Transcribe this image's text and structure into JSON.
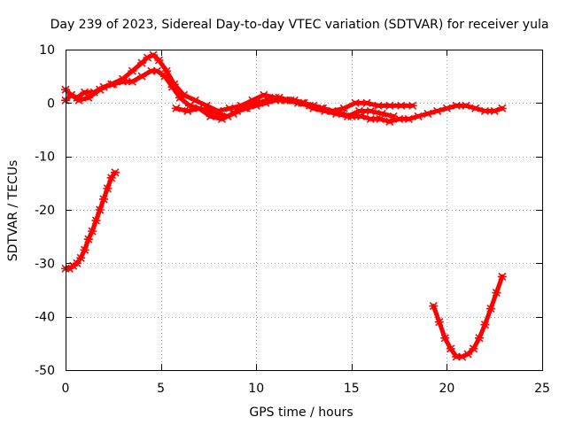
{
  "chart_data": {
    "type": "scatter",
    "title": "Day 239 of 2023, Sidereal Day-to-day VTEC variation (SDTVAR) for receiver yula",
    "xlabel": "GPS time / hours",
    "ylabel": "SDTVAR / TECUs",
    "xlim": [
      0,
      25
    ],
    "ylim": [
      -50,
      10
    ],
    "xticks": [
      0,
      5,
      10,
      15,
      20,
      25
    ],
    "yticks": [
      10,
      0,
      -10,
      -20,
      -30,
      -40,
      -50
    ],
    "grid": true,
    "marker": "cross",
    "color": "#ff0000",
    "series": [
      {
        "name": "cluster-a",
        "x": [
          0.0,
          0.3,
          0.6,
          1.0,
          1.5,
          2.0,
          2.5,
          3.0,
          3.5,
          4.0,
          4.5,
          4.8,
          5.2,
          5.6,
          6.0,
          6.5,
          7.0,
          7.5,
          8.0,
          8.5,
          9.0,
          9.5,
          10.0,
          10.5,
          11.0,
          11.5,
          12.0,
          12.5,
          13.0,
          13.5,
          14.0,
          14.5,
          15.0,
          15.5,
          16.0,
          16.5,
          17.0,
          17.5,
          18.0,
          18.5,
          19.0,
          19.5,
          20.0,
          20.5,
          21.0,
          21.5,
          22.0,
          22.5,
          22.9
        ],
        "y": [
          0.5,
          1.5,
          1.0,
          2.0,
          2.0,
          3.0,
          3.5,
          4.0,
          4.0,
          5.0,
          6.0,
          6.0,
          5.0,
          3.0,
          1.0,
          -0.5,
          -1.0,
          -1.5,
          -2.0,
          -2.5,
          -1.5,
          -1.0,
          -0.5,
          0.0,
          0.5,
          0.5,
          0.5,
          0.0,
          -0.5,
          -1.0,
          -1.5,
          -2.0,
          -2.5,
          -2.5,
          -3.0,
          -3.0,
          -3.5,
          -3.0,
          -3.0,
          -2.5,
          -2.0,
          -1.5,
          -1.0,
          -0.5,
          -0.5,
          -1.0,
          -1.5,
          -1.5,
          -1.0
        ]
      },
      {
        "name": "cluster-b",
        "x": [
          0.0,
          0.3,
          0.7,
          1.2,
          1.8,
          2.4,
          3.0,
          3.5,
          4.0,
          4.3,
          4.6,
          4.9,
          5.3,
          5.7,
          6.2,
          6.8,
          7.4,
          8.0,
          8.6,
          9.2,
          9.8,
          10.4,
          11.0,
          11.6,
          12.2,
          12.8,
          13.4,
          14.0,
          14.6,
          15.2,
          15.8,
          16.4,
          17.0,
          17.6,
          18.2
        ],
        "y": [
          2.5,
          1.5,
          0.5,
          1.0,
          2.5,
          3.5,
          4.5,
          6.0,
          7.5,
          8.5,
          9.0,
          8.0,
          6.0,
          3.5,
          1.5,
          0.5,
          -0.5,
          -1.5,
          -1.0,
          -0.5,
          0.5,
          1.5,
          1.0,
          0.5,
          0.0,
          -0.5,
          -1.0,
          -1.5,
          -1.0,
          0.0,
          0.0,
          -0.5,
          -0.5,
          -0.5,
          -0.5
        ]
      },
      {
        "name": "cluster-c",
        "x": [
          5.8,
          6.4,
          7.0,
          7.6,
          8.2,
          8.8,
          9.4,
          10.0,
          10.6,
          11.2,
          11.8,
          12.4,
          13.0,
          13.6,
          14.2,
          14.8,
          15.4,
          16.0,
          16.6,
          17.2
        ],
        "y": [
          -1.0,
          -1.5,
          -1.0,
          -2.5,
          -3.0,
          -2.0,
          -1.0,
          0.0,
          0.5,
          1.0,
          0.5,
          0.0,
          -1.0,
          -1.5,
          -2.0,
          -2.5,
          -1.5,
          -1.5,
          -2.0,
          -2.5
        ]
      },
      {
        "name": "early-drop",
        "x": [
          0.0,
          0.2,
          0.4,
          0.6,
          0.8,
          1.0,
          1.2,
          1.4,
          1.6,
          1.8,
          2.0,
          2.2,
          2.4,
          2.6
        ],
        "y": [
          -31.0,
          -31.0,
          -30.5,
          -30.0,
          -29.0,
          -27.5,
          -25.5,
          -24.0,
          -22.0,
          -20.0,
          -18.0,
          -16.0,
          -14.0,
          -13.0
        ]
      },
      {
        "name": "late-dip",
        "x": [
          19.3,
          19.6,
          19.9,
          20.2,
          20.5,
          20.8,
          21.1,
          21.4,
          21.7,
          22.0,
          22.3,
          22.6,
          22.9
        ],
        "y": [
          -38.0,
          -41.0,
          -44.0,
          -46.0,
          -47.5,
          -47.5,
          -47.0,
          -46.0,
          -44.0,
          -41.5,
          -38.5,
          -35.5,
          -32.5
        ]
      }
    ]
  }
}
